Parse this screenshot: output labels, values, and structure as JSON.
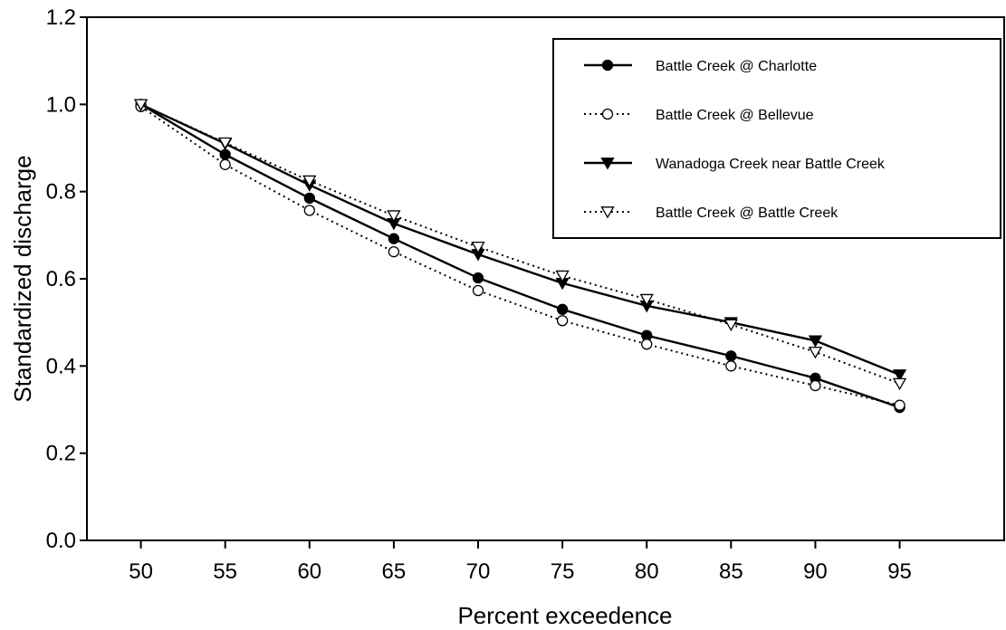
{
  "chart_data": {
    "type": "line",
    "title": "",
    "xlabel": "Percent exceedence",
    "ylabel": "Standardized discharge",
    "x": [
      50,
      55,
      60,
      65,
      70,
      75,
      80,
      85,
      90,
      95
    ],
    "xlim": [
      46.8,
      101.2
    ],
    "ylim": [
      0,
      1.2
    ],
    "xticks": [
      "50",
      "55",
      "60",
      "65",
      "70",
      "75",
      "80",
      "85",
      "90",
      "95"
    ],
    "yticks": [
      "0.0",
      "0.2",
      "0.4",
      "0.6",
      "0.8",
      "1.0",
      "1.2"
    ],
    "grid": false,
    "legend_position": "top-right",
    "series": [
      {
        "name": "Battle Creek @ Charlotte",
        "line": "solid",
        "marker": "circle-filled",
        "values": [
          1.0,
          0.885,
          0.785,
          0.692,
          0.602,
          0.53,
          0.47,
          0.423,
          0.372,
          0.305
        ]
      },
      {
        "name": "Battle Creek @ Bellevue",
        "line": "dotted",
        "marker": "circle-open",
        "values": [
          0.995,
          0.862,
          0.757,
          0.662,
          0.573,
          0.504,
          0.45,
          0.4,
          0.355,
          0.31
        ]
      },
      {
        "name": "Wanadoga Creek near Battle Creek",
        "line": "solid",
        "marker": "triangle-down-filled",
        "values": [
          1.0,
          0.91,
          0.815,
          0.727,
          0.656,
          0.59,
          0.538,
          0.5,
          0.458,
          0.38
        ]
      },
      {
        "name": "Battle Creek @ Battle Creek",
        "line": "dotted",
        "marker": "triangle-down-open",
        "values": [
          1.0,
          0.912,
          0.825,
          0.745,
          0.673,
          0.607,
          0.553,
          0.495,
          0.432,
          0.36
        ]
      }
    ]
  }
}
